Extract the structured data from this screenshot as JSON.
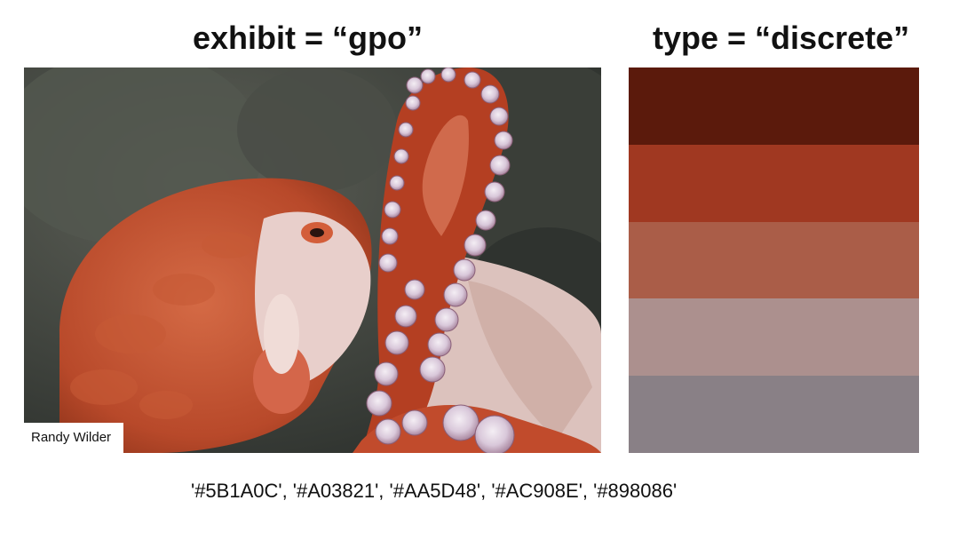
{
  "header": {
    "left_title": "exhibit =  “gpo”",
    "right_title": "type = “discrete”"
  },
  "photo": {
    "subject": "octopus-photo",
    "credit": "Randy Wilder"
  },
  "palette": {
    "swatches": [
      "#5B1A0C",
      "#A03821",
      "#AA5D48",
      "#AC908E",
      "#898086"
    ]
  },
  "footer": {
    "hex_text": "'#5B1A0C', '#A03821', '#AA5D48', '#AC908E', '#898086'"
  }
}
